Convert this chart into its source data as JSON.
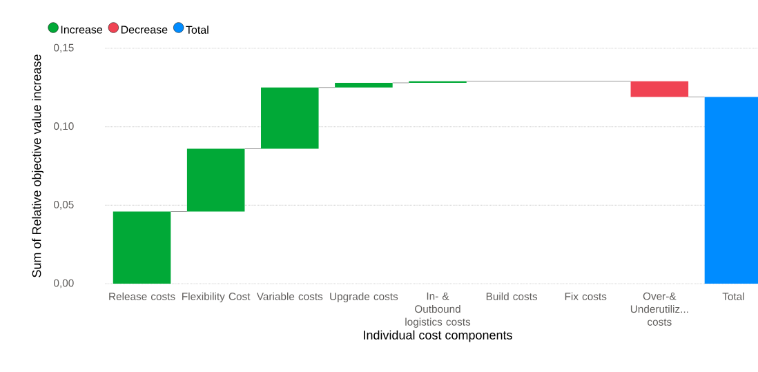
{
  "chart_data": {
    "type": "bar",
    "xlabel": "Individual cost components",
    "ylabel": "Sum of Relative objective value increase",
    "categories": [
      "Release costs",
      "Flexibility Cost",
      "Variable costs",
      "Upgrade costs",
      "In- & Outbound logistics costs",
      "Build costs",
      "Fix costs",
      "Over-& Underutiliz... costs",
      "Total"
    ],
    "series": [
      {
        "name": "Increase",
        "color": "#01a937",
        "base": [
          0,
          0.046,
          0.086,
          0.125,
          0.128,
          null,
          null,
          null,
          null
        ],
        "values": [
          0.046,
          0.04,
          0.039,
          0.003,
          0.001,
          0,
          0,
          null,
          null
        ]
      },
      {
        "name": "Decrease",
        "color": "#f04353",
        "base": [
          null,
          null,
          null,
          null,
          null,
          null,
          null,
          0.129,
          null
        ],
        "values": [
          null,
          null,
          null,
          null,
          null,
          null,
          null,
          -0.01,
          null
        ]
      },
      {
        "name": "Total",
        "color": "#008cff",
        "values": [
          null,
          null,
          null,
          null,
          null,
          null,
          null,
          null,
          0.119
        ]
      }
    ],
    "ylim": [
      0,
      0.15
    ],
    "yticks": [
      {
        "value": 0,
        "label": "0,00"
      },
      {
        "value": 0.05,
        "label": "0,05"
      },
      {
        "value": 0.1,
        "label": "0,10"
      },
      {
        "value": 0.15,
        "label": "0,15"
      }
    ],
    "grid": "y",
    "legend": "top left"
  }
}
